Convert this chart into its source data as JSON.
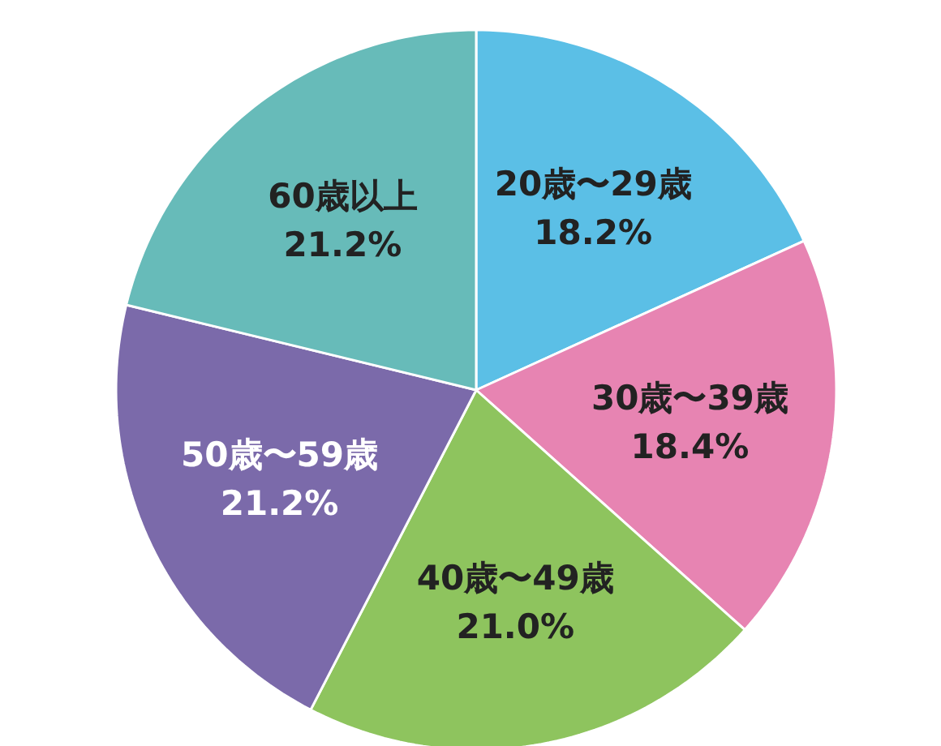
{
  "chart_data": {
    "type": "pie",
    "categories": [
      "20歳〜29歳",
      "30歳〜39歳",
      "40歳〜49歳",
      "50歳〜59歳",
      "60歳以上"
    ],
    "values": [
      18.2,
      18.4,
      21.0,
      21.2,
      21.2
    ],
    "value_labels": [
      "18.2%",
      "18.4%",
      "21.0%",
      "21.2%",
      "21.2%"
    ],
    "colors": [
      "#5bbfe6",
      "#e784b2",
      "#8ec45e",
      "#7b6aaa",
      "#67bbb9"
    ],
    "legend": false
  }
}
